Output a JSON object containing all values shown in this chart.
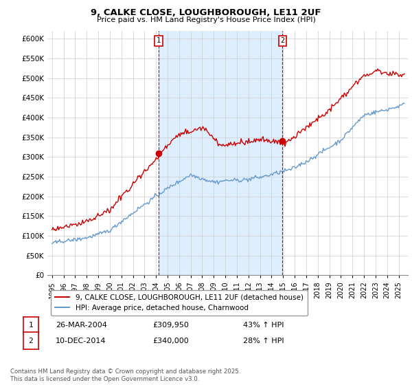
{
  "title": "9, CALKE CLOSE, LOUGHBOROUGH, LE11 2UF",
  "subtitle": "Price paid vs. HM Land Registry's House Price Index (HPI)",
  "legend_line1": "9, CALKE CLOSE, LOUGHBOROUGH, LE11 2UF (detached house)",
  "legend_line2": "HPI: Average price, detached house, Charnwood",
  "transaction1_date": "26-MAR-2004",
  "transaction1_price": "£309,950",
  "transaction1_hpi": "43% ↑ HPI",
  "transaction2_date": "10-DEC-2014",
  "transaction2_price": "£340,000",
  "transaction2_hpi": "28% ↑ HPI",
  "footnote": "Contains HM Land Registry data © Crown copyright and database right 2025.\nThis data is licensed under the Open Government Licence v3.0.",
  "hpi_color": "#6699cc",
  "price_color": "#cc0000",
  "shade_color": "#ddeeff",
  "ylim": [
    0,
    620000
  ],
  "yticks": [
    0,
    50000,
    100000,
    150000,
    200000,
    250000,
    300000,
    350000,
    400000,
    450000,
    500000,
    550000,
    600000
  ],
  "transaction1_year": 2004.23,
  "transaction2_year": 2014.94,
  "transaction1_price_val": 309950,
  "transaction2_price_val": 340000
}
